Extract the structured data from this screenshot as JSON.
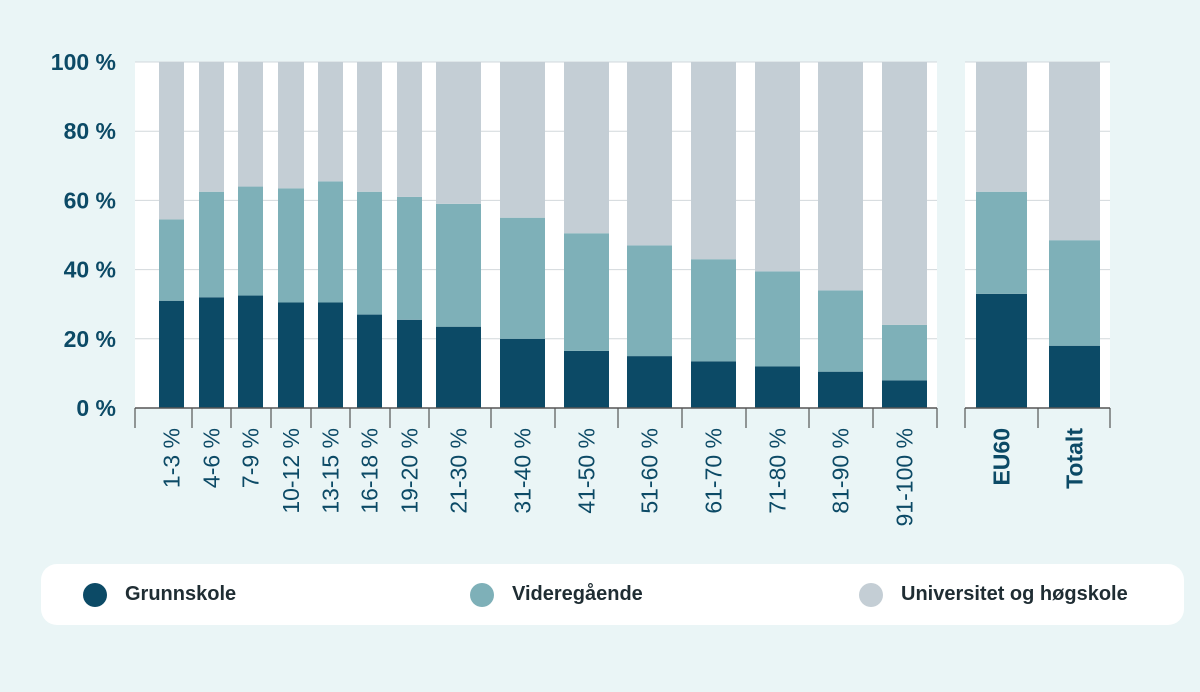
{
  "colors": {
    "grunnskole": "#0c4a66",
    "videregaende": "#7eb0b8",
    "universitet": "#c4ced5",
    "axis_text": "#0c4a66",
    "gridline": "#d2d8dc"
  },
  "legend": {
    "items": [
      {
        "label": "Grunnskole",
        "color": "#0c4a66"
      },
      {
        "label": "Videregående",
        "color": "#7eb0b8"
      },
      {
        "label": "Universitet og høgskole",
        "color": "#c4ced5"
      }
    ]
  },
  "chart_data": {
    "type": "bar",
    "stacked": true,
    "title": "",
    "xlabel": "",
    "ylabel": "",
    "ylim": [
      0,
      100
    ],
    "yticks": [
      "0 %",
      "20 %",
      "40 %",
      "60 %",
      "80 %",
      "100 %"
    ],
    "grid": true,
    "legend_position": "bottom",
    "categories": [
      "1-3 %",
      "4-6 %",
      "7-9 %",
      "10-12 %",
      "13-15 %",
      "16-18 %",
      "19-20 %",
      "21-30 %",
      "31-40 %",
      "41-50 %",
      "51-60 %",
      "61-70 %",
      "71-80 %",
      "81-90 %",
      "91-100 %",
      "EU60",
      "Totalt"
    ],
    "bold_categories": [
      "EU60",
      "Totalt"
    ],
    "series": [
      {
        "name": "Grunnskole",
        "values": [
          31,
          32,
          32.5,
          30.5,
          30.5,
          27,
          25.5,
          23.5,
          20,
          16.5,
          15,
          13.5,
          12,
          10.5,
          8,
          33,
          18
        ]
      },
      {
        "name": "Videregående",
        "values": [
          23.5,
          30.5,
          31.5,
          33,
          35,
          35.5,
          35.5,
          35.5,
          35,
          34,
          32,
          29.5,
          27.5,
          23.5,
          16,
          29.5,
          30.5
        ]
      },
      {
        "name": "Universitet og høgskole",
        "values": [
          45.5,
          37.5,
          36,
          36.5,
          34.5,
          37.5,
          39,
          41,
          45,
          49.5,
          53,
          57,
          60.5,
          66,
          76,
          37.5,
          51.5
        ]
      }
    ]
  }
}
